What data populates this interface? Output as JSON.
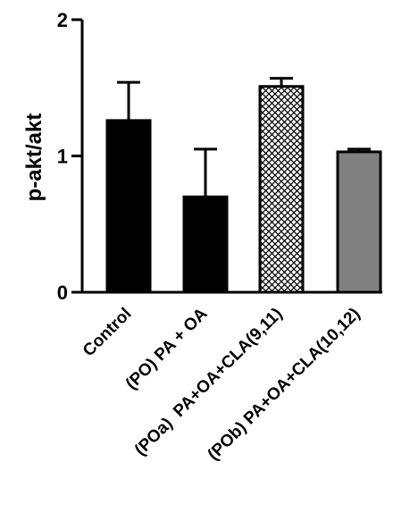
{
  "chart_data": {
    "type": "bar",
    "title": "",
    "xlabel": "",
    "ylabel": "p-akt/akt",
    "ylim": [
      0,
      2
    ],
    "yticks": [
      "0",
      "1",
      "2"
    ],
    "grid": false,
    "legend": "none",
    "categories": [
      "Control",
      "(PO) PA + OA",
      "(POa)  PA+OA+CLA(9,11)",
      "(POb) PA+OA+CLA(10,12)"
    ],
    "values": [
      1.26,
      0.7,
      1.51,
      1.03
    ],
    "errors": [
      0.28,
      0.35,
      0.06,
      0.02
    ],
    "fills": [
      "solid-black",
      "solid-black",
      "crosshatch-white",
      "solid-gray"
    ],
    "colors": {
      "axis": "#000000",
      "bar_black": "#000000",
      "bar_gray": "#808080",
      "hatch": "#000000"
    }
  }
}
